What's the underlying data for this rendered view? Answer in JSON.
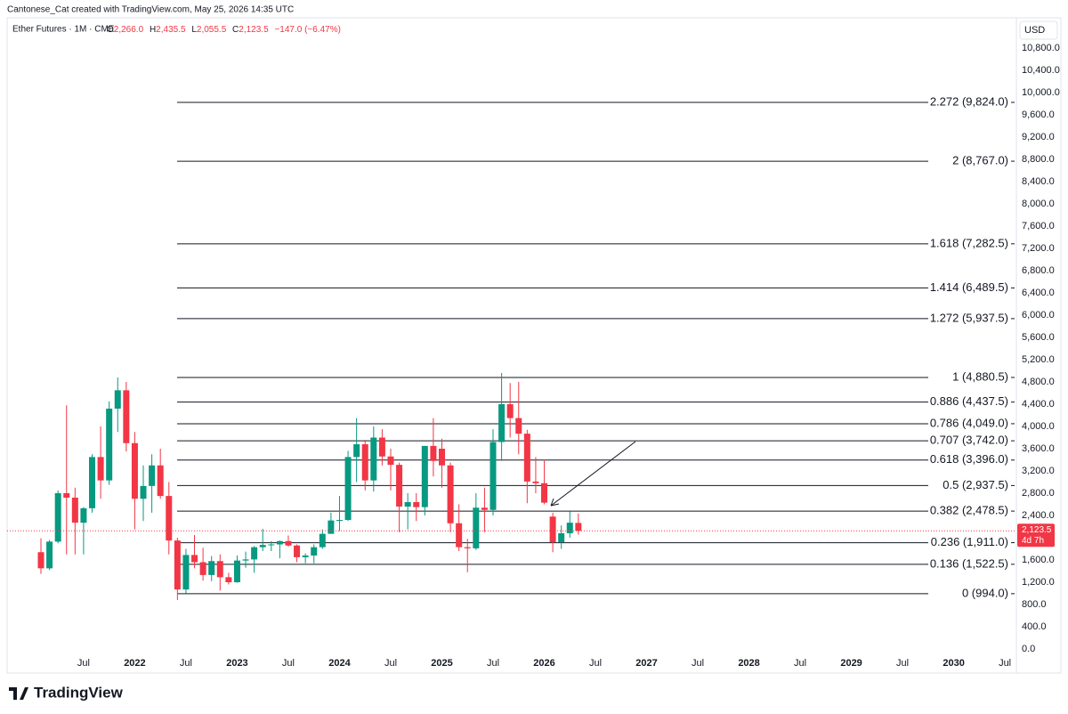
{
  "header": {
    "credit": "Cantonese_Cat created with TradingView.com, May 25, 2026 14:35 UTC",
    "symbol": "Ether Futures · 1M · CME",
    "open_key": "O",
    "open": "2,266.0",
    "high_key": "H",
    "high": "2,435.5",
    "low_key": "L",
    "low": "2,055.5",
    "close_key": "C",
    "close": "2,123.5",
    "change": "−147.0 (−6.47%)"
  },
  "footer": {
    "logo": "TradingView"
  },
  "chart_data": {
    "type": "candlestick",
    "currency": "USD",
    "colors": {
      "up": "#089981",
      "down": "#f23645"
    },
    "open": [
      1740,
      1450,
      1930,
      2800,
      2720,
      2270,
      2530,
      3450,
      3030,
      4320,
      4650,
      3700,
      2700,
      2930,
      3300,
      2750,
      1950,
      1070,
      1690,
      1560,
      1330,
      1580,
      1290,
      1200,
      1590,
      1610,
      1830,
      1870,
      1880,
      1940,
      1860,
      1650,
      1680,
      1830,
      2070,
      2310,
      2320,
      3450,
      3680,
      3030,
      3800,
      3460,
      3310,
      2560,
      2640,
      2550,
      3650,
      3600,
      3300,
      2260,
      1830,
      1810,
      2540,
      2500,
      3720,
      4400,
      4150,
      3870,
      3010,
      2980,
      2380,
      1920,
      2080,
      2266.0
    ],
    "high": [
      1990,
      1960,
      2850,
      4380,
      2900,
      2550,
      3500,
      4000,
      4450,
      4880,
      4800,
      3900,
      3300,
      3500,
      3600,
      3000,
      2000,
      1800,
      2050,
      1820,
      1670,
      1700,
      1370,
      1680,
      1750,
      1850,
      2160,
      1940,
      1950,
      2040,
      1880,
      1720,
      1880,
      2150,
      2450,
      2750,
      3560,
      4150,
      3760,
      4000,
      3950,
      3600,
      3350,
      2800,
      2800,
      3650,
      4150,
      3780,
      3350,
      2600,
      1980,
      2800,
      2900,
      3950,
      4960,
      4780,
      4800,
      3940,
      3450,
      3400,
      2450,
      2220,
      2470,
      2435.5
    ],
    "low": [
      1350,
      1420,
      1900,
      1700,
      1700,
      1700,
      2450,
      2700,
      2950,
      3900,
      3550,
      2150,
      2300,
      2450,
      2700,
      1700,
      880,
      1000,
      1450,
      1230,
      1220,
      1050,
      1160,
      1190,
      1460,
      1370,
      1760,
      1760,
      1630,
      1840,
      1560,
      1540,
      1540,
      1800,
      2070,
      2120,
      2300,
      3000,
      2850,
      2830,
      3300,
      2850,
      2100,
      2150,
      2300,
      2400,
      3100,
      2900,
      2100,
      1760,
      1380,
      1780,
      2100,
      2400,
      3380,
      3800,
      3500,
      2620,
      2800,
      2600,
      1740,
      1800,
      2000,
      2055.5
    ],
    "close": [
      1450,
      1930,
      2800,
      2720,
      2270,
      2530,
      3450,
      3030,
      4320,
      4650,
      3700,
      2700,
      2930,
      3300,
      2750,
      1950,
      1070,
      1690,
      1560,
      1330,
      1580,
      1290,
      1200,
      1590,
      1610,
      1830,
      1870,
      1880,
      1940,
      1860,
      1650,
      1680,
      1830,
      2070,
      2310,
      2320,
      3450,
      3680,
      3030,
      3800,
      3460,
      3310,
      2560,
      2640,
      2550,
      3650,
      3380,
      3300,
      2260,
      1830,
      1810,
      2540,
      2500,
      3720,
      4400,
      4150,
      3870,
      3010,
      2980,
      2630,
      1920,
      2080,
      2270,
      2123.5
    ],
    "ylim": [
      -400,
      11200
    ],
    "yticks": [
      {
        "value": 0,
        "label": "0.0"
      },
      {
        "value": 400,
        "label": "400.0"
      },
      {
        "value": 800,
        "label": "800.0"
      },
      {
        "value": 1200,
        "label": "1,200.0"
      },
      {
        "value": 1600,
        "label": "1,600.0"
      },
      {
        "value": 2000,
        "label": "2,000.0"
      },
      {
        "value": 2400,
        "label": "2,400.0"
      },
      {
        "value": 2800,
        "label": "2,800.0"
      },
      {
        "value": 3200,
        "label": "3,200.0"
      },
      {
        "value": 3600,
        "label": "3,600.0"
      },
      {
        "value": 4000,
        "label": "4,000.0"
      },
      {
        "value": 4400,
        "label": "4,400.0"
      },
      {
        "value": 4800,
        "label": "4,800.0"
      },
      {
        "value": 5200,
        "label": "5,200.0"
      },
      {
        "value": 5600,
        "label": "5,600.0"
      },
      {
        "value": 6000,
        "label": "6,000.0"
      },
      {
        "value": 6400,
        "label": "6,400.0"
      },
      {
        "value": 6800,
        "label": "6,800.0"
      },
      {
        "value": 7200,
        "label": "7,200.0"
      },
      {
        "value": 7600,
        "label": "7,600.0"
      },
      {
        "value": 8000,
        "label": "8,000.0"
      },
      {
        "value": 8400,
        "label": "8,400.0"
      },
      {
        "value": 8800,
        "label": "8,800.0"
      },
      {
        "value": 9200,
        "label": "9,200.0"
      },
      {
        "value": 9600,
        "label": "9,600.0"
      },
      {
        "value": 10000,
        "label": "10,000.0"
      },
      {
        "value": 10400,
        "label": "10,400.0"
      },
      {
        "value": 10800,
        "label": "10,800.0"
      }
    ],
    "time_labels": [
      "Jul",
      "2022",
      "Jul",
      "2023",
      "Jul",
      "2024",
      "Jul",
      "2025",
      "Jul",
      "2026",
      "Jul",
      "2027",
      "Jul",
      "2028",
      "Jul",
      "2029",
      "Jul",
      "2030",
      "Jul"
    ],
    "fib_levels": [
      {
        "value": 994.0,
        "label": "0 (994.0)"
      },
      {
        "value": 1522.5,
        "label": "0.136 (1,522.5)"
      },
      {
        "value": 1911.0,
        "label": "0.236 (1,911.0)"
      },
      {
        "value": 2478.5,
        "label": "0.382 (2,478.5)"
      },
      {
        "value": 2937.5,
        "label": "0.5 (2,937.5)"
      },
      {
        "value": 3396.0,
        "label": "0.618 (3,396.0)"
      },
      {
        "value": 3742.0,
        "label": "0.707 (3,742.0)"
      },
      {
        "value": 4049.0,
        "label": "0.786 (4,049.0)"
      },
      {
        "value": 4437.5,
        "label": "0.886 (4,437.5)"
      },
      {
        "value": 4880.5,
        "label": "1 (4,880.5)"
      },
      {
        "value": 5937.5,
        "label": "1.272 (5,937.5)"
      },
      {
        "value": 6489.5,
        "label": "1.414 (6,489.5)"
      },
      {
        "value": 7282.5,
        "label": "1.618 (7,282.5)"
      },
      {
        "value": 8767.0,
        "label": "2 (8,767.0)"
      },
      {
        "value": 9824.0,
        "label": "2.272 (9,824.0)"
      }
    ],
    "last_price": {
      "value": 2123.5,
      "label": "2,123.5"
    },
    "countdown": "4d 7h"
  }
}
